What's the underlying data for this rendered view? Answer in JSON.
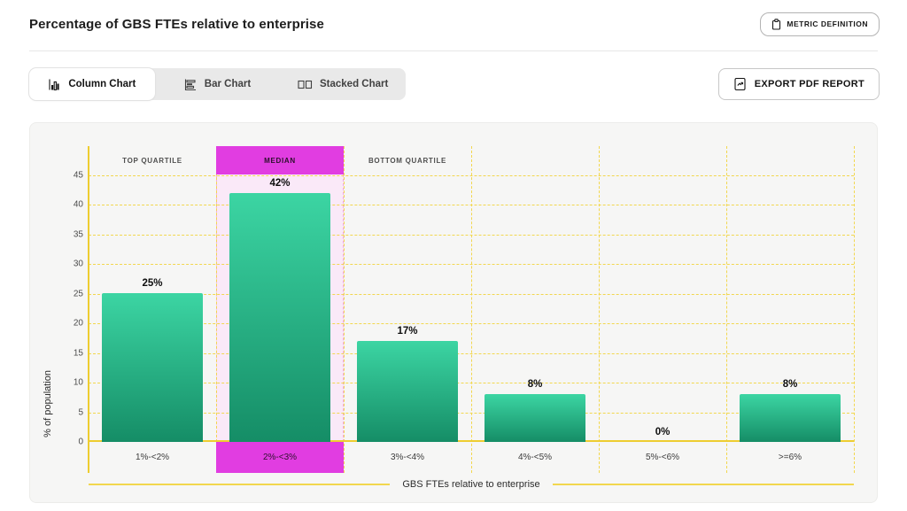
{
  "header": {
    "title": "Percentage of GBS FTEs relative to enterprise",
    "metric_button_label": "METRIC DEFINITION"
  },
  "toolbar": {
    "tabs": [
      {
        "label": "Column Chart",
        "active": true
      },
      {
        "label": "Bar Chart",
        "active": false
      },
      {
        "label": "Stacked Chart",
        "active": false
      }
    ],
    "export_button_label": "EXPORT PDF REPORT"
  },
  "chart_data": {
    "type": "bar",
    "categories": [
      "1%-<2%",
      "2%-<3%",
      "3%-<4%",
      "4%-<5%",
      "5%-<6%",
      ">=6%"
    ],
    "values": [
      25,
      42,
      17,
      8,
      0,
      8
    ],
    "value_labels": [
      "25%",
      "42%",
      "17%",
      "8%",
      "0%",
      "8%"
    ],
    "xlabel": "GBS FTEs relative to enterprise",
    "ylabel": "% of population",
    "ylim": [
      0,
      45
    ],
    "ytick_step": 5,
    "grid": true,
    "highlight_column": 1,
    "annotations": [
      {
        "label": "TOP QUARTILE",
        "column": 0,
        "highlight": false
      },
      {
        "label": "MEDIAN",
        "column": 1,
        "highlight": true
      },
      {
        "label": "BOTTOM QUARTILE",
        "column": 2,
        "highlight": false
      }
    ],
    "colors": {
      "bar_gradient_top": "#3cd5a3",
      "bar_gradient_bottom": "#158d66",
      "grid_yellow": "#f2d74e",
      "axis_yellow": "#eecd30",
      "highlight_magenta": "#e13de1",
      "highlight_pink_bg": "#fae9f8",
      "panel_bg": "#f6f6f5"
    }
  }
}
